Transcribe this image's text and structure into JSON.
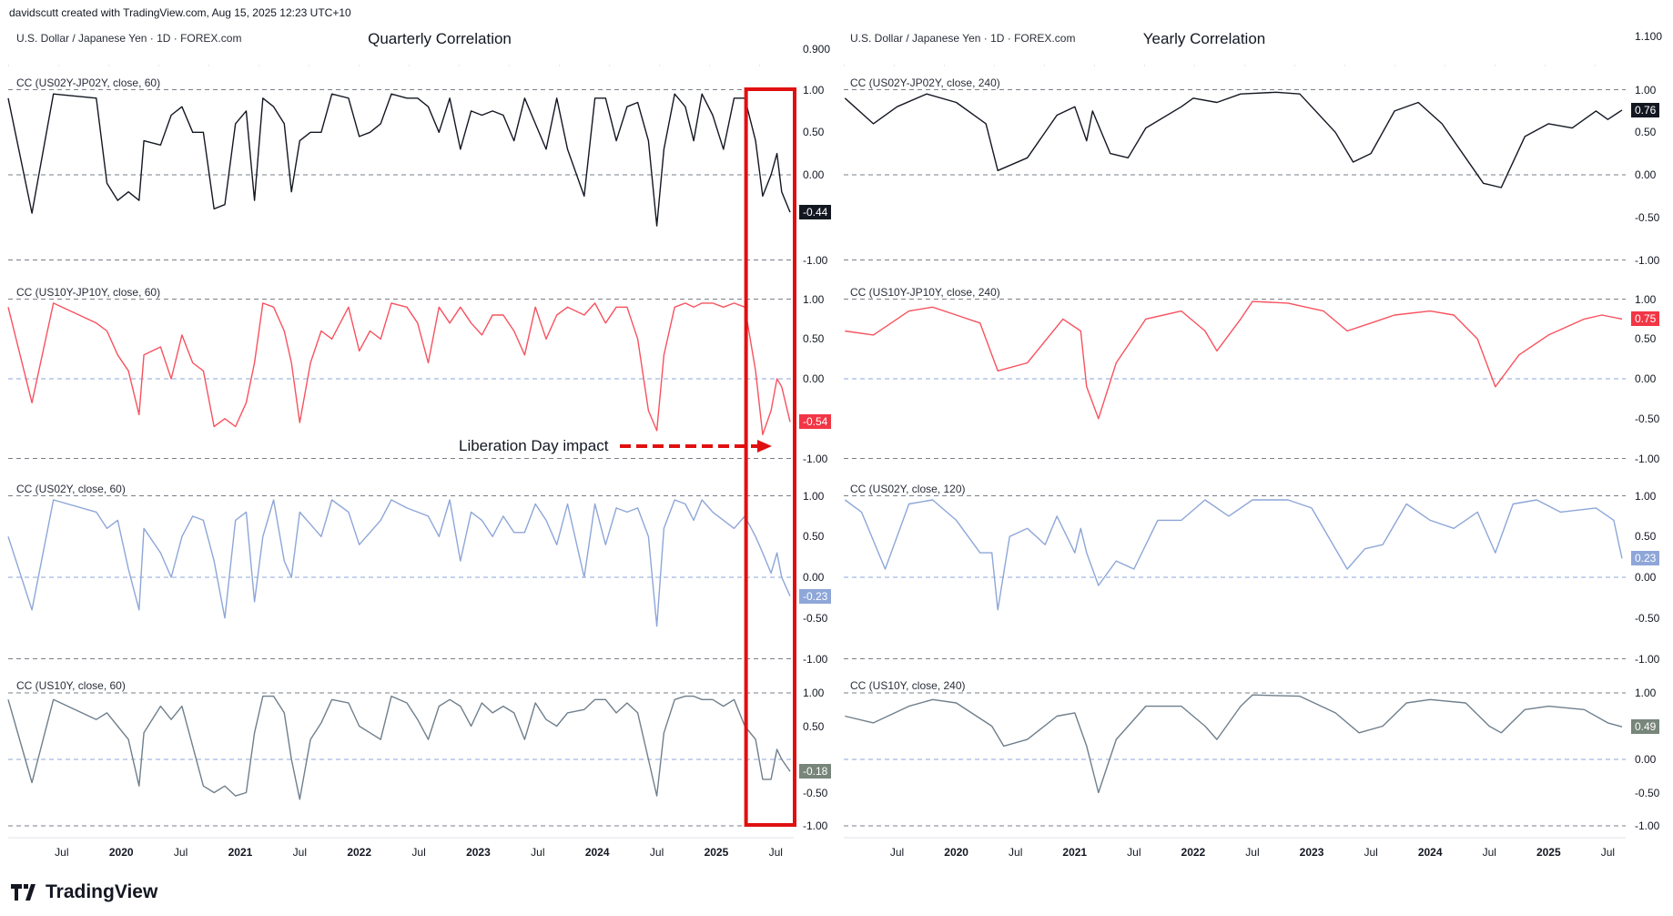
{
  "header": {
    "credit": "davidscutt created with TradingView.com, Aug 15, 2025 12:23 UTC+10",
    "symbol_left": "U.S. Dollar / Japanese Yen · 1D · FOREX.com",
    "symbol_right": "U.S. Dollar / Japanese Yen · 1D · FOREX.com",
    "title_left": "Quarterly Correlation",
    "title_right": "Yearly Correlation",
    "price_left": "0.900",
    "price_right": "1.100"
  },
  "annotation": {
    "text": "Liberation Day impact",
    "color": "#e01010"
  },
  "brand": {
    "name": "TradingView"
  },
  "axis_ticks": [
    "1.00",
    "0.50",
    "0.00",
    "-0.50",
    "-1.00"
  ],
  "x_labels": [
    "Jul",
    "2020",
    "Jul",
    "2021",
    "Jul",
    "2022",
    "Jul",
    "2023",
    "Jul",
    "2024",
    "Jul",
    "2025",
    "Jul"
  ],
  "x_label_times": [
    2019.5,
    2020.0,
    2020.5,
    2021.0,
    2021.5,
    2022.0,
    2022.5,
    2023.0,
    2023.5,
    2024.0,
    2024.5,
    2025.0,
    2025.5
  ],
  "chart_data": {
    "type": "line",
    "x_range": [
      2019.05,
      2025.62
    ],
    "ylim": [
      -1,
      1
    ],
    "highlight_range": [
      2025.25,
      2025.62
    ],
    "t_left": [
      2019.05,
      2019.25,
      2019.43,
      2019.79,
      2019.88,
      2019.97,
      2020.06,
      2020.15,
      2020.19,
      2020.33,
      2020.42,
      2020.51,
      2020.6,
      2020.69,
      2020.78,
      2020.87,
      2020.96,
      2021.05,
      2021.12,
      2021.19,
      2021.28,
      2021.37,
      2021.43,
      2021.5,
      2021.59,
      2021.68,
      2021.77,
      2021.91,
      2022.0,
      2022.09,
      2022.18,
      2022.27,
      2022.4,
      2022.49,
      2022.58,
      2022.67,
      2022.76,
      2022.85,
      2022.94,
      2023.03,
      2023.12,
      2023.21,
      2023.3,
      2023.39,
      2023.48,
      2023.57,
      2023.66,
      2023.75,
      2023.89,
      2023.98,
      2024.07,
      2024.16,
      2024.25,
      2024.34,
      2024.43,
      2024.5,
      2024.56,
      2024.65,
      2024.74,
      2024.81,
      2024.88,
      2024.97,
      2025.06,
      2025.15,
      2025.24,
      2025.33,
      2025.39,
      2025.46,
      2025.51,
      2025.55,
      2025.62
    ],
    "left": [
      {
        "name": "CC (US02Y-JP02Y, close, 60)",
        "color": "#131722",
        "label_bg": "#131722",
        "last": "-0.44",
        "values": [
          0.9,
          -0.45,
          0.95,
          0.9,
          -0.1,
          -0.3,
          -0.2,
          -0.3,
          0.4,
          0.35,
          0.7,
          0.8,
          0.5,
          0.5,
          -0.4,
          -0.35,
          0.6,
          0.75,
          -0.3,
          0.9,
          0.8,
          0.6,
          -0.2,
          0.4,
          0.5,
          0.5,
          0.95,
          0.9,
          0.45,
          0.5,
          0.6,
          0.95,
          0.9,
          0.9,
          0.8,
          0.5,
          0.9,
          0.3,
          0.75,
          0.7,
          0.75,
          0.7,
          0.4,
          0.9,
          0.6,
          0.3,
          0.9,
          0.3,
          -0.25,
          0.9,
          0.9,
          0.4,
          0.8,
          0.85,
          0.4,
          -0.6,
          0.3,
          0.95,
          0.8,
          0.4,
          0.95,
          0.7,
          0.3,
          0.9,
          0.9,
          0.4,
          -0.25,
          0.0,
          0.25,
          -0.2,
          -0.44
        ]
      },
      {
        "name": "CC (US10Y-JP10Y, close, 60)",
        "color": "#f7525f",
        "label_bg": "#f23645",
        "last": "-0.54",
        "values": [
          0.9,
          -0.3,
          0.95,
          0.7,
          0.6,
          0.3,
          0.1,
          -0.45,
          0.3,
          0.4,
          0.0,
          0.55,
          0.2,
          0.1,
          -0.6,
          -0.5,
          -0.6,
          -0.3,
          0.2,
          0.95,
          0.9,
          0.6,
          0.2,
          -0.55,
          0.2,
          0.6,
          0.5,
          0.9,
          0.35,
          0.6,
          0.5,
          0.95,
          0.9,
          0.7,
          0.2,
          0.9,
          0.7,
          0.9,
          0.7,
          0.55,
          0.8,
          0.8,
          0.6,
          0.3,
          0.9,
          0.5,
          0.8,
          0.9,
          0.8,
          0.95,
          0.7,
          0.9,
          0.9,
          0.5,
          -0.4,
          -0.65,
          0.3,
          0.9,
          0.95,
          0.9,
          0.95,
          0.95,
          0.9,
          0.95,
          0.9,
          0.1,
          -0.7,
          -0.4,
          0.0,
          -0.1,
          -0.54
        ]
      },
      {
        "name": "CC (US02Y, close, 60)",
        "color": "#8ea6d8",
        "label_bg": "#8ea6d8",
        "last": "-0.23",
        "values": [
          0.5,
          -0.4,
          0.95,
          0.8,
          0.6,
          0.7,
          0.1,
          -0.4,
          0.6,
          0.3,
          0.0,
          0.5,
          0.75,
          0.7,
          0.2,
          -0.5,
          0.7,
          0.8,
          -0.3,
          0.5,
          0.95,
          0.2,
          0.0,
          0.8,
          0.65,
          0.5,
          0.95,
          0.8,
          0.4,
          0.55,
          0.7,
          0.95,
          0.85,
          0.8,
          0.75,
          0.5,
          0.95,
          0.2,
          0.8,
          0.7,
          0.5,
          0.75,
          0.55,
          0.55,
          0.9,
          0.7,
          0.4,
          0.9,
          0.0,
          0.9,
          0.4,
          0.85,
          0.8,
          0.85,
          0.5,
          -0.6,
          0.6,
          0.95,
          0.9,
          0.7,
          0.95,
          0.8,
          0.7,
          0.6,
          0.75,
          0.5,
          0.3,
          0.05,
          0.3,
          0.0,
          -0.23
        ]
      },
      {
        "name": "CC (US10Y, close, 60)",
        "color": "#6f7f8c",
        "label_bg": "#77857a",
        "last": "-0.18",
        "values": [
          0.9,
          -0.35,
          0.9,
          0.6,
          0.7,
          0.5,
          0.3,
          -0.4,
          0.4,
          0.8,
          0.6,
          0.8,
          0.2,
          -0.4,
          -0.5,
          -0.4,
          -0.55,
          -0.5,
          0.4,
          0.95,
          0.95,
          0.7,
          0.0,
          -0.6,
          0.3,
          0.55,
          0.9,
          0.85,
          0.5,
          0.4,
          0.3,
          0.95,
          0.85,
          0.6,
          0.3,
          0.8,
          0.9,
          0.8,
          0.5,
          0.85,
          0.7,
          0.8,
          0.7,
          0.3,
          0.85,
          0.6,
          0.5,
          0.7,
          0.75,
          0.9,
          0.9,
          0.7,
          0.85,
          0.7,
          0.0,
          -0.55,
          0.4,
          0.9,
          0.95,
          0.95,
          0.9,
          0.9,
          0.8,
          0.9,
          0.5,
          0.3,
          -0.3,
          -0.3,
          0.15,
          0.0,
          -0.18
        ]
      }
    ],
    "right": [
      {
        "name": "CC (US02Y-JP02Y, close, 240)",
        "color": "#131722",
        "label_bg": "#131722",
        "last": "0.76",
        "points": [
          [
            2019.06,
            0.9
          ],
          [
            2019.3,
            0.6
          ],
          [
            2019.5,
            0.8
          ],
          [
            2019.75,
            0.95
          ],
          [
            2020.0,
            0.85
          ],
          [
            2020.25,
            0.6
          ],
          [
            2020.35,
            0.05
          ],
          [
            2020.6,
            0.2
          ],
          [
            2020.85,
            0.7
          ],
          [
            2021.0,
            0.8
          ],
          [
            2021.1,
            0.4
          ],
          [
            2021.15,
            0.75
          ],
          [
            2021.3,
            0.25
          ],
          [
            2021.45,
            0.2
          ],
          [
            2021.6,
            0.55
          ],
          [
            2021.9,
            0.8
          ],
          [
            2022.0,
            0.9
          ],
          [
            2022.2,
            0.85
          ],
          [
            2022.4,
            0.95
          ],
          [
            2022.7,
            0.97
          ],
          [
            2022.9,
            0.95
          ],
          [
            2023.2,
            0.5
          ],
          [
            2023.35,
            0.15
          ],
          [
            2023.5,
            0.25
          ],
          [
            2023.7,
            0.75
          ],
          [
            2023.9,
            0.85
          ],
          [
            2024.1,
            0.6
          ],
          [
            2024.3,
            0.2
          ],
          [
            2024.45,
            -0.1
          ],
          [
            2024.6,
            -0.15
          ],
          [
            2024.8,
            0.45
          ],
          [
            2025.0,
            0.6
          ],
          [
            2025.2,
            0.55
          ],
          [
            2025.4,
            0.75
          ],
          [
            2025.5,
            0.65
          ],
          [
            2025.62,
            0.76
          ]
        ]
      },
      {
        "name": "CC (US10Y-JP10Y, close, 240)",
        "color": "#f7525f",
        "label_bg": "#f23645",
        "last": "0.75",
        "points": [
          [
            2019.06,
            0.6
          ],
          [
            2019.3,
            0.55
          ],
          [
            2019.6,
            0.85
          ],
          [
            2019.8,
            0.9
          ],
          [
            2020.0,
            0.8
          ],
          [
            2020.2,
            0.7
          ],
          [
            2020.35,
            0.1
          ],
          [
            2020.6,
            0.2
          ],
          [
            2020.9,
            0.75
          ],
          [
            2021.05,
            0.6
          ],
          [
            2021.1,
            -0.1
          ],
          [
            2021.2,
            -0.5
          ],
          [
            2021.35,
            0.2
          ],
          [
            2021.6,
            0.75
          ],
          [
            2021.9,
            0.85
          ],
          [
            2022.1,
            0.6
          ],
          [
            2022.2,
            0.35
          ],
          [
            2022.4,
            0.75
          ],
          [
            2022.5,
            0.97
          ],
          [
            2022.8,
            0.95
          ],
          [
            2023.1,
            0.85
          ],
          [
            2023.3,
            0.6
          ],
          [
            2023.5,
            0.7
          ],
          [
            2023.7,
            0.8
          ],
          [
            2024.0,
            0.85
          ],
          [
            2024.2,
            0.8
          ],
          [
            2024.4,
            0.5
          ],
          [
            2024.55,
            -0.1
          ],
          [
            2024.75,
            0.3
          ],
          [
            2025.0,
            0.55
          ],
          [
            2025.3,
            0.75
          ],
          [
            2025.45,
            0.8
          ],
          [
            2025.62,
            0.75
          ]
        ]
      },
      {
        "name": "CC (US02Y, close, 120)",
        "color": "#8ea6d8",
        "label_bg": "#8ea6d8",
        "last": "0.23",
        "points": [
          [
            2019.06,
            0.95
          ],
          [
            2019.2,
            0.8
          ],
          [
            2019.4,
            0.1
          ],
          [
            2019.6,
            0.9
          ],
          [
            2019.8,
            0.95
          ],
          [
            2020.0,
            0.7
          ],
          [
            2020.2,
            0.3
          ],
          [
            2020.3,
            0.3
          ],
          [
            2020.35,
            -0.4
          ],
          [
            2020.45,
            0.5
          ],
          [
            2020.6,
            0.6
          ],
          [
            2020.75,
            0.4
          ],
          [
            2020.85,
            0.75
          ],
          [
            2021.0,
            0.3
          ],
          [
            2021.05,
            0.6
          ],
          [
            2021.1,
            0.3
          ],
          [
            2021.2,
            -0.1
          ],
          [
            2021.35,
            0.2
          ],
          [
            2021.5,
            0.1
          ],
          [
            2021.7,
            0.7
          ],
          [
            2021.9,
            0.7
          ],
          [
            2022.1,
            0.95
          ],
          [
            2022.3,
            0.75
          ],
          [
            2022.5,
            0.95
          ],
          [
            2022.8,
            0.95
          ],
          [
            2023.0,
            0.85
          ],
          [
            2023.3,
            0.1
          ],
          [
            2023.45,
            0.35
          ],
          [
            2023.6,
            0.4
          ],
          [
            2023.8,
            0.9
          ],
          [
            2024.0,
            0.7
          ],
          [
            2024.2,
            0.6
          ],
          [
            2024.4,
            0.8
          ],
          [
            2024.55,
            0.3
          ],
          [
            2024.7,
            0.9
          ],
          [
            2024.9,
            0.95
          ],
          [
            2025.1,
            0.8
          ],
          [
            2025.4,
            0.85
          ],
          [
            2025.55,
            0.7
          ],
          [
            2025.62,
            0.23
          ]
        ]
      },
      {
        "name": "CC (US10Y, close, 240)",
        "color": "#6f7f8c",
        "label_bg": "#77857a",
        "last": "0.49",
        "points": [
          [
            2019.06,
            0.65
          ],
          [
            2019.3,
            0.55
          ],
          [
            2019.6,
            0.8
          ],
          [
            2019.8,
            0.9
          ],
          [
            2020.0,
            0.85
          ],
          [
            2020.3,
            0.5
          ],
          [
            2020.4,
            0.2
          ],
          [
            2020.6,
            0.3
          ],
          [
            2020.85,
            0.65
          ],
          [
            2021.0,
            0.7
          ],
          [
            2021.1,
            0.2
          ],
          [
            2021.2,
            -0.5
          ],
          [
            2021.35,
            0.3
          ],
          [
            2021.6,
            0.8
          ],
          [
            2021.9,
            0.8
          ],
          [
            2022.1,
            0.5
          ],
          [
            2022.2,
            0.3
          ],
          [
            2022.4,
            0.8
          ],
          [
            2022.5,
            0.97
          ],
          [
            2022.9,
            0.95
          ],
          [
            2023.2,
            0.7
          ],
          [
            2023.4,
            0.4
          ],
          [
            2023.6,
            0.5
          ],
          [
            2023.8,
            0.85
          ],
          [
            2024.0,
            0.9
          ],
          [
            2024.3,
            0.85
          ],
          [
            2024.5,
            0.5
          ],
          [
            2024.6,
            0.4
          ],
          [
            2024.8,
            0.75
          ],
          [
            2025.0,
            0.8
          ],
          [
            2025.3,
            0.75
          ],
          [
            2025.5,
            0.55
          ],
          [
            2025.62,
            0.49
          ]
        ]
      }
    ]
  }
}
